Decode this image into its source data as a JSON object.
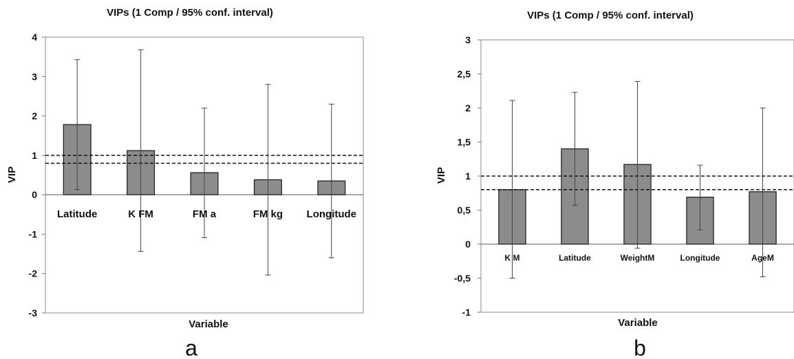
{
  "chart_data": [
    {
      "type": "bar",
      "title": "VIPs (1 Comp / 95% conf. interval)",
      "xlabel": "Variable",
      "ylabel": "VIP",
      "ylim": [
        -3,
        4
      ],
      "yticks": [
        "-3",
        "-2",
        "-1",
        "0",
        "1",
        "2",
        "3",
        "4"
      ],
      "categories": [
        "Latitude",
        "K FM",
        "FM a",
        "FM kg",
        "Longitude"
      ],
      "values": [
        1.78,
        1.12,
        0.56,
        0.38,
        0.35
      ],
      "ci_low": [
        0.13,
        -1.44,
        -1.09,
        -2.04,
        -1.6
      ],
      "ci_high": [
        3.43,
        3.68,
        2.2,
        2.8,
        2.3
      ],
      "reference_lines": [
        1.0,
        0.8
      ],
      "grid": false,
      "panel_label": "a",
      "bar_color": "#8c8c8c"
    },
    {
      "type": "bar",
      "title": "VIPs (1 Comp / 95% conf. interval)",
      "xlabel": "Variable",
      "ylabel": "VIP",
      "ylim": [
        -1,
        3
      ],
      "yticks": [
        "-1",
        "-0,5",
        "0",
        "0,5",
        "1",
        "1,5",
        "2",
        "2,5",
        "3"
      ],
      "categories": [
        "K M",
        "Latitude",
        "WeightM",
        "Longitude",
        "AgeM"
      ],
      "values": [
        0.8,
        1.4,
        1.17,
        0.69,
        0.77
      ],
      "ci_low": [
        -0.5,
        0.57,
        -0.06,
        0.21,
        -0.48
      ],
      "ci_high": [
        2.11,
        2.23,
        2.39,
        1.16,
        2.0
      ],
      "reference_lines": [
        1.0,
        0.8
      ],
      "grid": false,
      "panel_label": "b",
      "bar_color": "#8c8c8c"
    }
  ]
}
